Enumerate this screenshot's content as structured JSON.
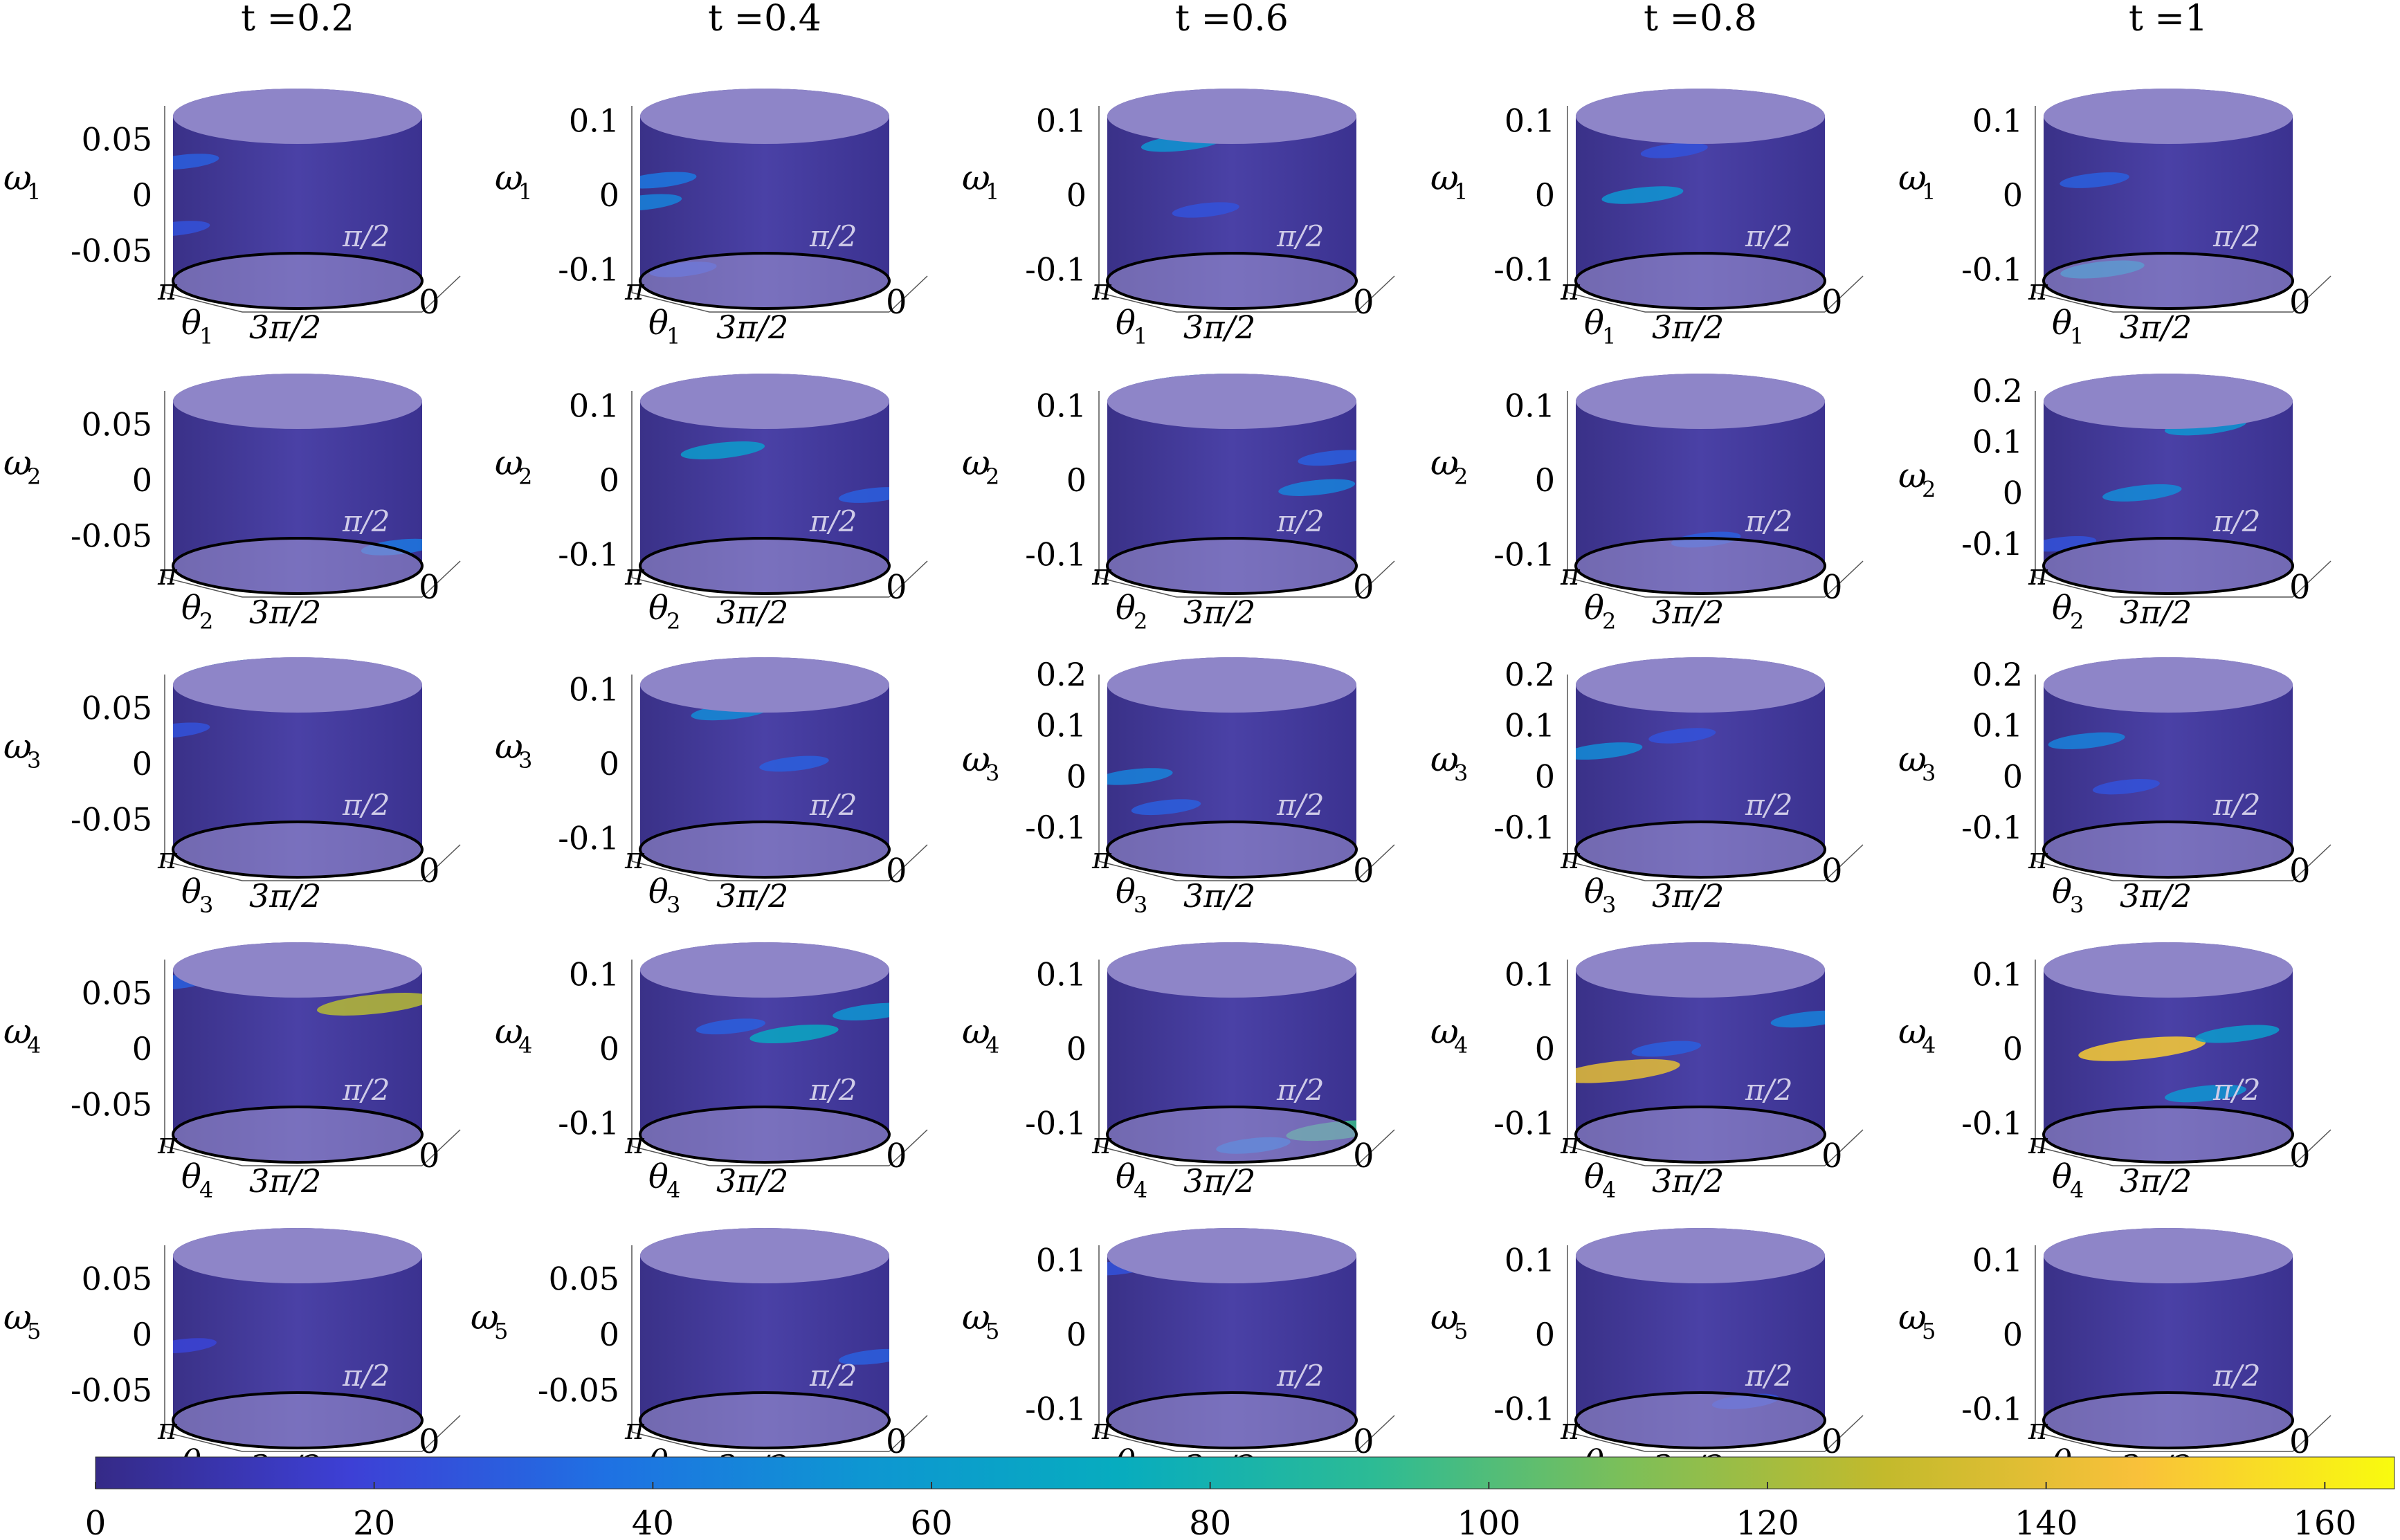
{
  "chart_data": {
    "type": "heatmap",
    "surface": "cylinder",
    "column_titles": [
      "t =0.2",
      "t =0.4",
      "t =0.6",
      "t =0.8",
      "t =1"
    ],
    "row_labels": [
      {
        "omega": "ω",
        "sub": "1",
        "theta": "θ"
      },
      {
        "omega": "ω",
        "sub": "2",
        "theta": "θ"
      },
      {
        "omega": "ω",
        "sub": "3",
        "theta": "θ"
      },
      {
        "omega": "ω",
        "sub": "4",
        "theta": "θ"
      },
      {
        "omega": "ω",
        "sub": "5",
        "theta": "θ"
      }
    ],
    "theta_ticks": {
      "left": "π",
      "front": "3π/2",
      "right": "0",
      "back": "π/2"
    },
    "panels": [
      [
        {
          "yticks": [
            "0.05",
            "0",
            "-0.05"
          ],
          "ylim": [
            -0.08,
            0.08
          ],
          "blobs": [
            {
              "theta": 3.0,
              "w": 0.03,
              "v": 30
            },
            {
              "theta": 3.1,
              "w": -0.03,
              "v": 25
            }
          ]
        },
        {
          "yticks": [
            "0.1",
            "0",
            "-0.1"
          ],
          "ylim": [
            -0.12,
            0.12
          ],
          "blobs": [
            {
              "theta": 2.9,
              "w": 0.02,
              "v": 40
            },
            {
              "theta": 3.1,
              "w": -0.01,
              "v": 45
            },
            {
              "theta": 2.6,
              "w": -0.1,
              "v": 25
            }
          ]
        },
        {
          "yticks": [
            "0.1",
            "0",
            "-0.1"
          ],
          "ylim": [
            -0.12,
            0.12
          ],
          "blobs": [
            {
              "theta": 2.2,
              "w": 0.07,
              "v": 55
            },
            {
              "theta": 1.9,
              "w": -0.02,
              "v": 25
            }
          ]
        },
        {
          "yticks": [
            "0.1",
            "0",
            "-0.1"
          ],
          "ylim": [
            -0.12,
            0.12
          ],
          "blobs": [
            {
              "theta": 2.3,
              "w": 0.0,
              "v": 55
            },
            {
              "theta": 1.9,
              "w": 0.06,
              "v": 25
            }
          ]
        },
        {
          "yticks": [
            "0.1",
            "0",
            "-0.1"
          ],
          "ylim": [
            -0.12,
            0.12
          ],
          "blobs": [
            {
              "theta": 2.4,
              "w": -0.1,
              "v": 60
            },
            {
              "theta": 2.5,
              "w": 0.02,
              "v": 30
            }
          ]
        }
      ],
      [
        {
          "yticks": [
            "0.05",
            "0",
            "-0.05"
          ],
          "ylim": [
            -0.08,
            0.08
          ],
          "blobs": [
            {
              "theta": 0.3,
              "w": -0.06,
              "v": 40
            }
          ]
        },
        {
          "yticks": [
            "0.1",
            "0",
            "-0.1"
          ],
          "ylim": [
            -0.12,
            0.12
          ],
          "blobs": [
            {
              "theta": 2.5,
              "w": 0.1,
              "v": 55
            },
            {
              "theta": 2.1,
              "w": 0.04,
              "v": 60
            },
            {
              "theta": 0.2,
              "w": -0.02,
              "v": 30
            }
          ]
        },
        {
          "yticks": [
            "0.1",
            "0",
            "-0.1"
          ],
          "ylim": [
            -0.12,
            0.12
          ],
          "blobs": [
            {
              "theta": 2.2,
              "w": 0.14,
              "v": 65
            },
            {
              "theta": 0.5,
              "w": -0.01,
              "v": 45
            },
            {
              "theta": 0.3,
              "w": 0.03,
              "v": 30
            }
          ]
        },
        {
          "yticks": [
            "0.1",
            "0",
            "-0.1"
          ],
          "ylim": [
            -0.12,
            0.12
          ],
          "blobs": [
            {
              "theta": 2.0,
              "w": 0.12,
              "v": 25
            },
            {
              "theta": 1.5,
              "w": -0.08,
              "v": 30
            }
          ]
        },
        {
          "yticks": [
            "0.2",
            "0.1",
            "0",
            "-0.1"
          ],
          "ylim": [
            -0.15,
            0.2
          ],
          "blobs": [
            {
              "theta": 1.1,
              "w": 0.13,
              "v": 55
            },
            {
              "theta": 1.9,
              "w": 0.0,
              "v": 50
            },
            {
              "theta": 2.9,
              "w": -0.1,
              "v": 25
            }
          ]
        }
      ],
      [
        {
          "yticks": [
            "0.05",
            "0",
            "-0.05"
          ],
          "ylim": [
            -0.08,
            0.08
          ],
          "blobs": [
            {
              "theta": 2.75,
              "w": 0.09,
              "v": 70
            },
            {
              "theta": 3.1,
              "w": 0.03,
              "v": 25
            }
          ]
        },
        {
          "yticks": [
            "0.1",
            "0",
            "-0.1"
          ],
          "ylim": [
            -0.12,
            0.12
          ],
          "blobs": [
            {
              "theta": 2.0,
              "w": 0.07,
              "v": 50
            },
            {
              "theta": 1.2,
              "w": 0.0,
              "v": 30
            }
          ]
        },
        {
          "yticks": [
            "0.2",
            "0.1",
            "0",
            "-0.1"
          ],
          "ylim": [
            -0.15,
            0.2
          ],
          "blobs": [
            {
              "theta": 1.2,
              "w": 0.19,
              "v": 65
            },
            {
              "theta": 2.8,
              "w": 0.0,
              "v": 45
            },
            {
              "theta": 2.4,
              "w": -0.06,
              "v": 30
            }
          ]
        },
        {
          "yticks": [
            "0.2",
            "0.1",
            "0",
            "-0.1"
          ],
          "ylim": [
            -0.15,
            0.2
          ],
          "blobs": [
            {
              "theta": 2.8,
              "w": 0.05,
              "v": 50
            },
            {
              "theta": 1.8,
              "w": 0.08,
              "v": 25
            }
          ]
        },
        {
          "yticks": [
            "0.2",
            "0.1",
            "0",
            "-0.1"
          ],
          "ylim": [
            -0.15,
            0.2
          ],
          "blobs": [
            {
              "theta": 2.6,
              "w": 0.07,
              "v": 45
            },
            {
              "theta": 2.1,
              "w": -0.02,
              "v": 25
            }
          ]
        }
      ],
      [
        {
          "yticks": [
            "0.05",
            "0",
            "-0.05"
          ],
          "ylim": [
            -0.08,
            0.08
          ],
          "blobs": [
            {
              "theta": 0.6,
              "w": 0.04,
              "v": 125
            },
            {
              "theta": 3.1,
              "w": 0.06,
              "v": 30
            }
          ]
        },
        {
          "yticks": [
            "0.1",
            "0",
            "-0.1"
          ],
          "ylim": [
            -0.12,
            0.12
          ],
          "blobs": [
            {
              "theta": 1.2,
              "w": 0.02,
              "v": 70
            },
            {
              "theta": 0.2,
              "w": 0.05,
              "v": 55
            },
            {
              "theta": 2.0,
              "w": 0.03,
              "v": 30
            }
          ]
        },
        {
          "yticks": [
            "0.1",
            "0",
            "-0.1"
          ],
          "ylim": [
            -0.12,
            0.12
          ],
          "blobs": [
            {
              "theta": 0.25,
              "w": -0.11,
              "v": 95
            },
            {
              "theta": 1.3,
              "w": -0.13,
              "v": 40
            }
          ]
        },
        {
          "yticks": [
            "0.1",
            "0",
            "-0.1"
          ],
          "ylim": [
            -0.12,
            0.12
          ],
          "blobs": [
            {
              "theta": 2.6,
              "w": -0.03,
              "v": 140
            },
            {
              "theta": 0.2,
              "w": 0.04,
              "v": 45
            },
            {
              "theta": 2.0,
              "w": 0.0,
              "v": 30
            }
          ]
        },
        {
          "yticks": [
            "0.1",
            "0",
            "-0.1"
          ],
          "ylim": [
            -0.12,
            0.12
          ],
          "blobs": [
            {
              "theta": 1.9,
              "w": 0.0,
              "v": 150
            },
            {
              "theta": 0.7,
              "w": 0.02,
              "v": 60
            },
            {
              "theta": 1.1,
              "w": -0.06,
              "v": 55
            }
          ]
        }
      ],
      [
        {
          "yticks": [
            "0.05",
            "0",
            "-0.05"
          ],
          "ylim": [
            -0.08,
            0.08
          ],
          "blobs": [
            {
              "theta": 3.0,
              "w": -0.01,
              "v": 20
            }
          ]
        },
        {
          "yticks": [
            "0.05",
            "0",
            "-0.05"
          ],
          "ylim": [
            -0.08,
            0.08
          ],
          "blobs": [
            {
              "theta": 0.6,
              "w": 0.07,
              "v": 45
            },
            {
              "theta": 0.2,
              "w": -0.02,
              "v": 30
            }
          ]
        },
        {
          "yticks": [
            "0.1",
            "0",
            "-0.1"
          ],
          "ylim": [
            -0.12,
            0.12
          ],
          "blobs": [
            {
              "theta": 0.4,
              "w": 0.12,
              "v": 40
            },
            {
              "theta": 3.0,
              "w": 0.09,
              "v": 25
            }
          ]
        },
        {
          "yticks": [
            "0.1",
            "0",
            "-0.1"
          ],
          "ylim": [
            -0.12,
            0.12
          ],
          "blobs": [
            {
              "theta": 0.5,
              "w": 0.12,
              "v": 40
            },
            {
              "theta": 1.0,
              "w": -0.09,
              "v": 25
            }
          ]
        },
        {
          "yticks": [
            "0.1",
            "0",
            "-0.1"
          ],
          "ylim": [
            -0.12,
            0.12
          ],
          "blobs": []
        }
      ]
    ],
    "colorbar": {
      "min": 0,
      "max": 165,
      "ticks": [
        "0",
        "20",
        "40",
        "60",
        "80",
        "100",
        "120",
        "140",
        "160"
      ],
      "colormap": "parula",
      "stops": [
        "#352a87",
        "#3d40d6",
        "#1f71e3",
        "#0e96d2",
        "#07acbf",
        "#2cbb95",
        "#7dbf58",
        "#c3ba2c",
        "#f9c13a",
        "#f9fb0e"
      ]
    },
    "colors": {
      "surface": "#43399a",
      "rim": "#8e85c8",
      "outline": "#000000"
    },
    "grid": false,
    "legend": "colorbar-bottom"
  }
}
